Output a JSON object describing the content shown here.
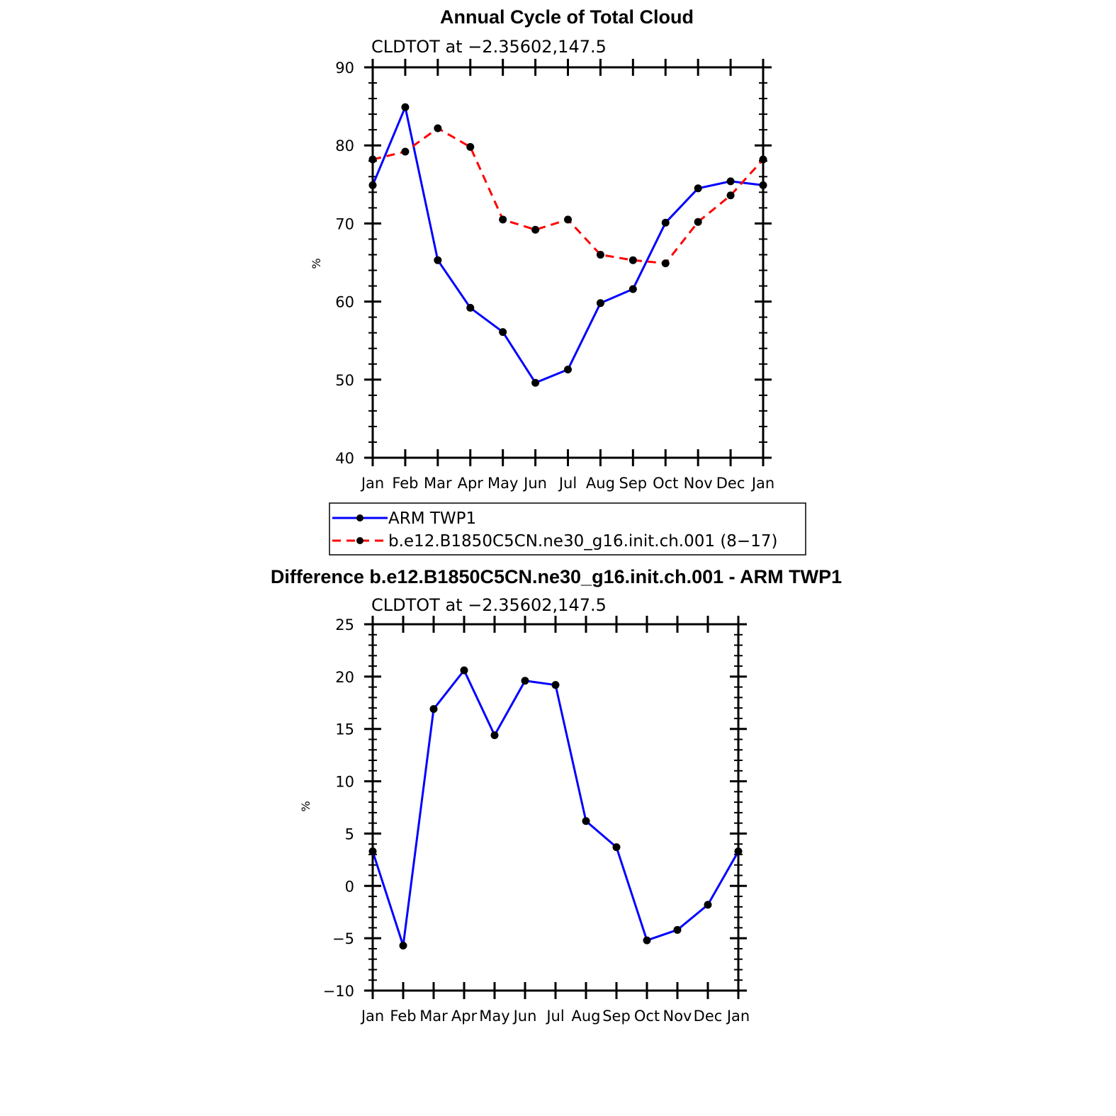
{
  "chart_data": [
    {
      "type": "line",
      "title": "Annual Cycle of Total Cloud",
      "subtitle": "CLDTOT at −2.35602,147.5",
      "ylabel": "%",
      "xlabel": "",
      "ylim": [
        40,
        90
      ],
      "yticks": [
        "40",
        "50",
        "60",
        "70",
        "80",
        "90"
      ],
      "categories": [
        "Jan",
        "Feb",
        "Mar",
        "Apr",
        "May",
        "Jun",
        "Jul",
        "Aug",
        "Sep",
        "Oct",
        "Nov",
        "Dec",
        "Jan"
      ],
      "series": [
        {
          "name": "ARM TWP1",
          "color": "#0000ff",
          "dash": "solid",
          "values": [
            74.9,
            84.9,
            65.3,
            59.2,
            56.1,
            49.6,
            51.3,
            59.8,
            61.6,
            70.1,
            74.5,
            75.4,
            74.9
          ]
        },
        {
          "name": "b.e12.B1850C5CN.ne30_g16.init.ch.001 (8−17)",
          "color": "#ff0000",
          "dash": "dashed",
          "values": [
            78.2,
            79.2,
            82.2,
            79.8,
            70.5,
            69.2,
            70.5,
            66.0,
            65.3,
            64.9,
            70.2,
            73.6,
            78.2
          ]
        }
      ]
    },
    {
      "type": "line",
      "title": "Difference b.e12.B1850C5CN.ne30_g16.init.ch.001 - ARM TWP1",
      "subtitle": "CLDTOT at −2.35602,147.5",
      "ylabel": "%",
      "xlabel": "",
      "ylim": [
        -10,
        25
      ],
      "yticks": [
        "−10",
        "−5",
        "0",
        "5",
        "10",
        "15",
        "20",
        "25"
      ],
      "categories": [
        "Jan",
        "Feb",
        "Mar",
        "Apr",
        "May",
        "Jun",
        "Jul",
        "Aug",
        "Sep",
        "Oct",
        "Nov",
        "Dec",
        "Jan"
      ],
      "series": [
        {
          "name": "difference",
          "color": "#0000ff",
          "dash": "solid",
          "values": [
            3.3,
            -5.7,
            16.9,
            20.6,
            14.4,
            19.6,
            19.2,
            6.2,
            3.7,
            -5.2,
            -4.2,
            -1.8,
            3.3
          ]
        }
      ]
    }
  ]
}
